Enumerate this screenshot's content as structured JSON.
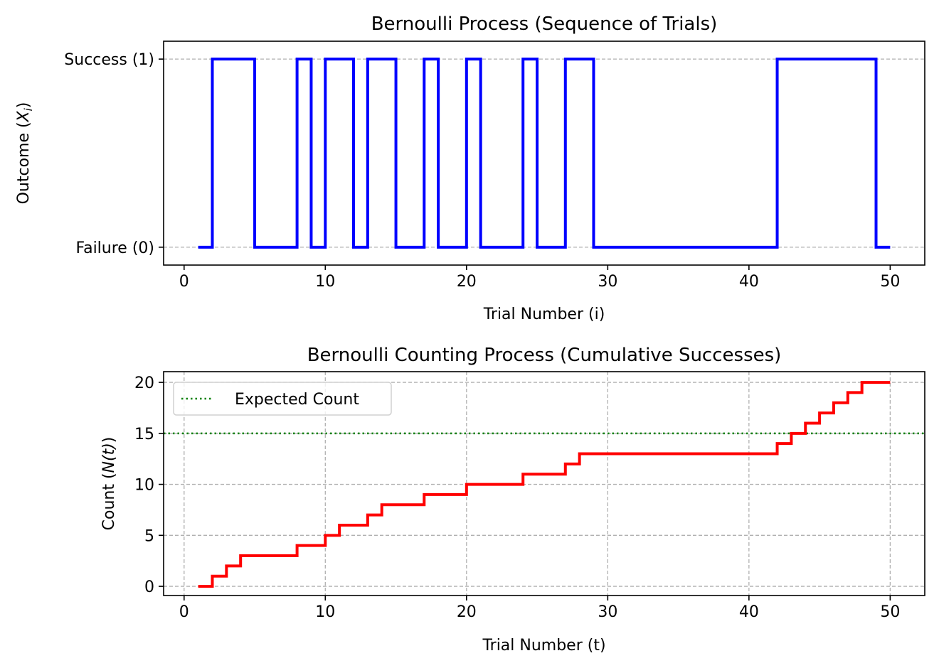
{
  "chart_data": [
    {
      "type": "line",
      "step": "post",
      "title": "Bernoulli Process (Sequence of Trials)",
      "xlabel": "Trial Number (i)",
      "ylabel_prefix": "Outcome (",
      "ylabel_var": "X",
      "ylabel_sub": "i",
      "ylabel_suffix": ")",
      "xlim": [
        -1.45,
        52.45
      ],
      "ylim": [
        -0.095,
        1.095
      ],
      "xticks": [
        0,
        10,
        20,
        30,
        40,
        50
      ],
      "xtick_labels": [
        "0",
        "10",
        "20",
        "30",
        "40",
        "50"
      ],
      "yticks": [
        0,
        1
      ],
      "ytick_labels": [
        "Failure (0)",
        "Success (1)"
      ],
      "grid": "y-dashed",
      "color": "#0000ff",
      "x": [
        1,
        2,
        3,
        4,
        5,
        6,
        7,
        8,
        9,
        10,
        11,
        12,
        13,
        14,
        15,
        16,
        17,
        18,
        19,
        20,
        21,
        22,
        23,
        24,
        25,
        26,
        27,
        28,
        29,
        30,
        31,
        32,
        33,
        34,
        35,
        36,
        37,
        38,
        39,
        40,
        41,
        42,
        43,
        44,
        45,
        46,
        47,
        48,
        49,
        50
      ],
      "values": [
        0,
        1,
        1,
        1,
        0,
        0,
        0,
        1,
        0,
        1,
        1,
        0,
        1,
        1,
        0,
        0,
        1,
        0,
        0,
        1,
        0,
        0,
        0,
        1,
        0,
        0,
        1,
        1,
        0,
        0,
        0,
        0,
        0,
        0,
        0,
        0,
        0,
        0,
        0,
        0,
        0,
        1,
        1,
        1,
        1,
        1,
        1,
        1,
        0,
        0
      ]
    },
    {
      "type": "line",
      "step": "post",
      "title": "Bernoulli Counting Process (Cumulative Successes)",
      "xlabel": "Trial Number (t)",
      "ylabel_prefix": "Count (",
      "ylabel_var": "N(t)",
      "ylabel_suffix": ")",
      "xlim": [
        -1.45,
        52.45
      ],
      "ylim": [
        -0.9,
        21.05
      ],
      "xticks": [
        0,
        10,
        20,
        30,
        40,
        50
      ],
      "xtick_labels": [
        "0",
        "10",
        "20",
        "30",
        "40",
        "50"
      ],
      "yticks": [
        0,
        5,
        10,
        15,
        20
      ],
      "ytick_labels": [
        "0",
        "5",
        "10",
        "15",
        "20"
      ],
      "grid": "both-dashed",
      "color": "#ff0000",
      "x": [
        1,
        2,
        3,
        4,
        5,
        6,
        7,
        8,
        9,
        10,
        11,
        12,
        13,
        14,
        15,
        16,
        17,
        18,
        19,
        20,
        21,
        22,
        23,
        24,
        25,
        26,
        27,
        28,
        29,
        30,
        31,
        32,
        33,
        34,
        35,
        36,
        37,
        38,
        39,
        40,
        41,
        42,
        43,
        44,
        45,
        46,
        47,
        48,
        49,
        50
      ],
      "values": [
        0,
        1,
        2,
        3,
        3,
        3,
        3,
        4,
        4,
        5,
        6,
        6,
        7,
        8,
        8,
        8,
        9,
        9,
        9,
        10,
        10,
        10,
        10,
        11,
        11,
        11,
        12,
        13,
        13,
        13,
        13,
        13,
        13,
        13,
        13,
        13,
        13,
        13,
        13,
        13,
        13,
        14,
        15,
        16,
        17,
        18,
        19,
        20,
        20,
        20
      ],
      "hline": {
        "y": 15,
        "label": "Expected Count",
        "color": "#008000",
        "style": "dotted"
      },
      "legend": {
        "placement": "upper-left",
        "entries": [
          "Expected Count"
        ]
      }
    }
  ]
}
